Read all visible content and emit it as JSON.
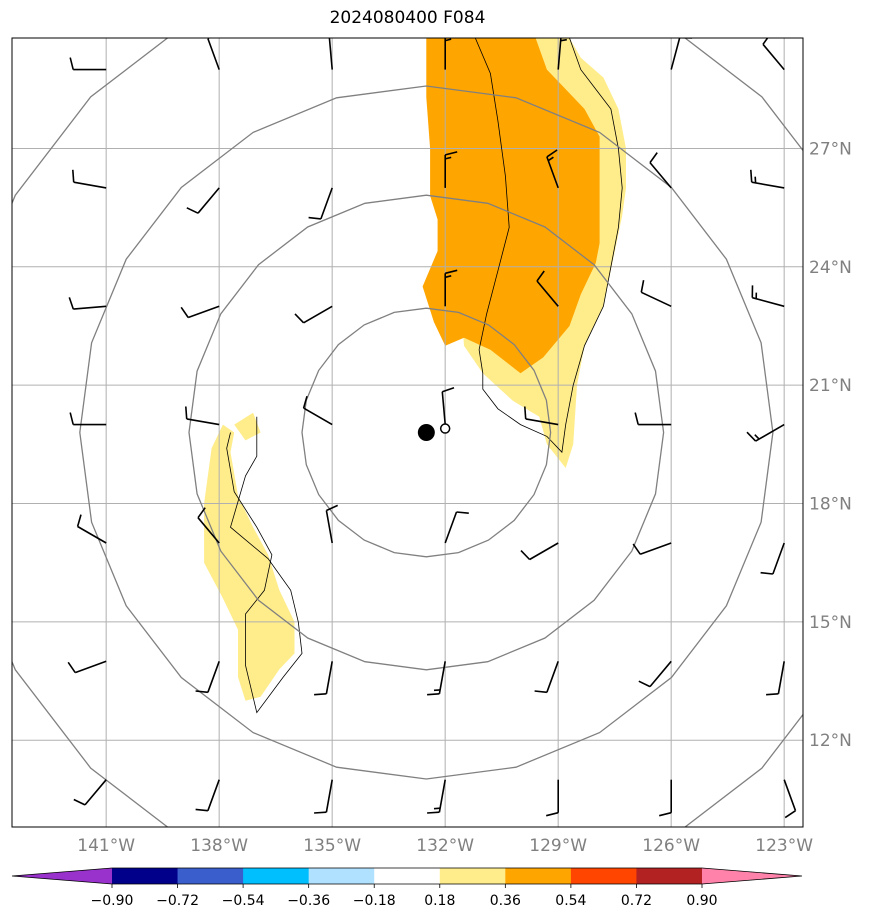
{
  "title": "2024080400 F084",
  "map": {
    "lon_range": [
      -143.5,
      -122.5
    ],
    "lat_range": [
      9.8,
      29.8
    ],
    "lon_ticks": [
      -141,
      -138,
      -135,
      -132,
      -129,
      -126,
      -123
    ],
    "lat_ticks": [
      12,
      15,
      18,
      21,
      24,
      27
    ],
    "lon_tick_labels": [
      "141°W",
      "138°W",
      "135°W",
      "132°W",
      "129°W",
      "126°W",
      "123°W"
    ],
    "lat_tick_labels": [
      "12°N",
      "15°N",
      "18°N",
      "21°N",
      "24°N",
      "27°N"
    ],
    "grid": true,
    "storm_center": [
      -132.5,
      19.8
    ],
    "storm_marker_small": [
      -132.0,
      19.9
    ],
    "range_ring_radii_deg": [
      3.3,
      6.3,
      9.2,
      12.6
    ],
    "colors": {
      "shade_light": "#ffec8b",
      "shade_dark": "#ffa500",
      "grid": "#b0b0b0",
      "rings": "#808080",
      "outline": "#000000"
    },
    "shaded_regions": [
      {
        "level": "0.18-0.36",
        "color": "#ffec8b",
        "polygons": [
          [
            [
              -131.1,
              29.8
            ],
            [
              -131.4,
              28.6
            ],
            [
              -131.3,
              27.7
            ],
            [
              -131.3,
              26.6
            ],
            [
              -131.0,
              25.8
            ],
            [
              -131.0,
              25.0
            ],
            [
              -131.4,
              24.3
            ],
            [
              -131.6,
              23.3
            ],
            [
              -131.5,
              22.0
            ],
            [
              -131.0,
              21.3
            ],
            [
              -130.2,
              20.6
            ],
            [
              -129.5,
              20.2
            ],
            [
              -129.3,
              19.5
            ],
            [
              -128.8,
              18.9
            ],
            [
              -128.6,
              19.5
            ],
            [
              -128.5,
              21.0
            ],
            [
              -128.3,
              22.0
            ],
            [
              -127.8,
              23.0
            ],
            [
              -127.3,
              25.3
            ],
            [
              -127.2,
              26.0
            ],
            [
              -127.2,
              27.0
            ],
            [
              -127.4,
              28.0
            ],
            [
              -127.8,
              28.8
            ],
            [
              -128.4,
              29.3
            ],
            [
              -128.7,
              29.8
            ]
          ],
          [
            [
              -137.5,
              18.2
            ],
            [
              -137.7,
              19.3
            ],
            [
              -137.6,
              19.8
            ],
            [
              -137.9,
              20.0
            ],
            [
              -138.2,
              19.4
            ],
            [
              -138.4,
              18.0
            ],
            [
              -138.4,
              16.5
            ],
            [
              -137.9,
              15.6
            ],
            [
              -137.5,
              14.8
            ],
            [
              -137.5,
              13.6
            ],
            [
              -137.3,
              13.0
            ],
            [
              -136.9,
              13.1
            ],
            [
              -136.4,
              13.8
            ],
            [
              -136.0,
              14.2
            ],
            [
              -136.0,
              15.0
            ],
            [
              -136.4,
              15.8
            ],
            [
              -136.7,
              16.7
            ],
            [
              -137.1,
              17.4
            ]
          ],
          [
            [
              -137.1,
              20.3
            ],
            [
              -136.9,
              19.8
            ],
            [
              -137.3,
              19.6
            ],
            [
              -137.6,
              20.0
            ]
          ]
        ]
      },
      {
        "level": "0.36-0.54",
        "color": "#ffa500",
        "polygons": [
          [
            [
              -132.5,
              29.8
            ],
            [
              -132.5,
              28.3
            ],
            [
              -132.4,
              27.0
            ],
            [
              -132.4,
              25.8
            ],
            [
              -132.2,
              25.2
            ],
            [
              -132.2,
              24.4
            ],
            [
              -132.6,
              23.5
            ],
            [
              -132.3,
              22.6
            ],
            [
              -132.0,
              22.0
            ],
            [
              -131.5,
              22.2
            ],
            [
              -130.8,
              21.9
            ],
            [
              -130.0,
              21.3
            ],
            [
              -129.4,
              21.7
            ],
            [
              -128.7,
              22.5
            ],
            [
              -128.4,
              23.3
            ],
            [
              -128.0,
              24.1
            ],
            [
              -127.9,
              24.6
            ],
            [
              -127.9,
              26.0
            ],
            [
              -127.9,
              27.3
            ],
            [
              -128.3,
              28.0
            ],
            [
              -128.9,
              28.6
            ],
            [
              -129.3,
              29.0
            ],
            [
              -129.6,
              29.8
            ]
          ]
        ]
      }
    ],
    "outline_lines": [
      [
        [
          -131.2,
          29.8
        ],
        [
          -130.8,
          28.9
        ],
        [
          -130.6,
          27.7
        ],
        [
          -130.4,
          26.3
        ],
        [
          -130.3,
          25.0
        ],
        [
          -130.6,
          23.9
        ],
        [
          -130.9,
          22.8
        ],
        [
          -131.1,
          21.9
        ],
        [
          -131.0,
          21.3
        ],
        [
          -131.0,
          20.9
        ],
        [
          -130.6,
          20.4
        ],
        [
          -130.0,
          20.0
        ],
        [
          -129.3,
          19.7
        ],
        [
          -128.9,
          19.3
        ],
        [
          -128.8,
          20.0
        ],
        [
          -128.6,
          21.0
        ],
        [
          -128.3,
          22.0
        ],
        [
          -127.8,
          23.0
        ],
        [
          -127.6,
          24.0
        ],
        [
          -127.4,
          25.0
        ],
        [
          -127.3,
          26.0
        ],
        [
          -127.4,
          27.0
        ],
        [
          -127.6,
          28.0
        ],
        [
          -128.0,
          28.5
        ],
        [
          -128.4,
          29.0
        ],
        [
          -128.7,
          29.8
        ]
      ],
      [
        [
          -137.7,
          19.8
        ],
        [
          -137.8,
          19.4
        ],
        [
          -137.6,
          18.3
        ],
        [
          -137.0,
          17.4
        ],
        [
          -136.6,
          16.7
        ],
        [
          -136.8,
          15.8
        ],
        [
          -137.3,
          15.2
        ],
        [
          -137.3,
          13.9
        ],
        [
          -137.0,
          12.7
        ],
        [
          -136.3,
          13.6
        ],
        [
          -135.8,
          14.2
        ],
        [
          -135.9,
          15.0
        ],
        [
          -136.1,
          15.8
        ],
        [
          -136.7,
          16.6
        ],
        [
          -137.7,
          17.4
        ],
        [
          -137.3,
          18.7
        ],
        [
          -137.0,
          19.2
        ],
        [
          -137.0,
          20.2
        ]
      ]
    ],
    "wind_barbs": {
      "lons": [
        -141,
        -138,
        -135,
        -132,
        -129,
        -126,
        -123
      ],
      "lats": [
        29,
        26,
        23,
        20,
        17,
        14,
        11
      ],
      "rows": [
        [
          [
            270,
            10
          ],
          [
            340,
            10
          ],
          [
            355,
            10
          ],
          [
            0,
            15
          ],
          [
            5,
            15
          ],
          [
            15,
            10
          ],
          [
            320,
            10
          ]
        ],
        [
          [
            280,
            10
          ],
          [
            220,
            10
          ],
          [
            200,
            10
          ],
          [
            0,
            15
          ],
          [
            340,
            15
          ],
          [
            320,
            10
          ],
          [
            280,
            15
          ]
        ],
        [
          [
            265,
            10
          ],
          [
            250,
            10
          ],
          [
            240,
            10
          ],
          [
            0,
            15
          ],
          [
            320,
            10
          ],
          [
            295,
            10
          ],
          [
            285,
            15
          ]
        ],
        [
          [
            270,
            10
          ],
          [
            280,
            10
          ],
          [
            300,
            10
          ],
          [
            355,
            10
          ],
          [
            280,
            10
          ],
          [
            270,
            10
          ],
          [
            240,
            15
          ]
        ],
        [
          [
            300,
            10
          ],
          [
            320,
            10
          ],
          [
            350,
            10
          ],
          [
            20,
            10
          ],
          [
            240,
            10
          ],
          [
            250,
            10
          ],
          [
            200,
            10
          ]
        ],
        [
          [
            250,
            10
          ],
          [
            200,
            10
          ],
          [
            190,
            10
          ],
          [
            190,
            15
          ],
          [
            200,
            10
          ],
          [
            220,
            10
          ],
          [
            190,
            10
          ]
        ],
        [
          [
            220,
            10
          ],
          [
            200,
            10
          ],
          [
            190,
            10
          ],
          [
            190,
            15
          ],
          [
            180,
            10
          ],
          [
            180,
            10
          ],
          [
            160,
            10
          ]
        ]
      ]
    }
  },
  "colorbar": {
    "colors": [
      "#9932cc",
      "#00008b",
      "#3a5fcd",
      "#00bfff",
      "#b0e2ff",
      "#ffffff",
      "#ffec8b",
      "#ffa500",
      "#ff4500",
      "#b22222",
      "#ff82ab"
    ],
    "tick_labels": [
      "−0.90",
      "−0.72",
      "−0.54",
      "−0.36",
      "−0.18",
      "0.18",
      "0.36",
      "0.54",
      "0.72",
      "0.90"
    ]
  }
}
